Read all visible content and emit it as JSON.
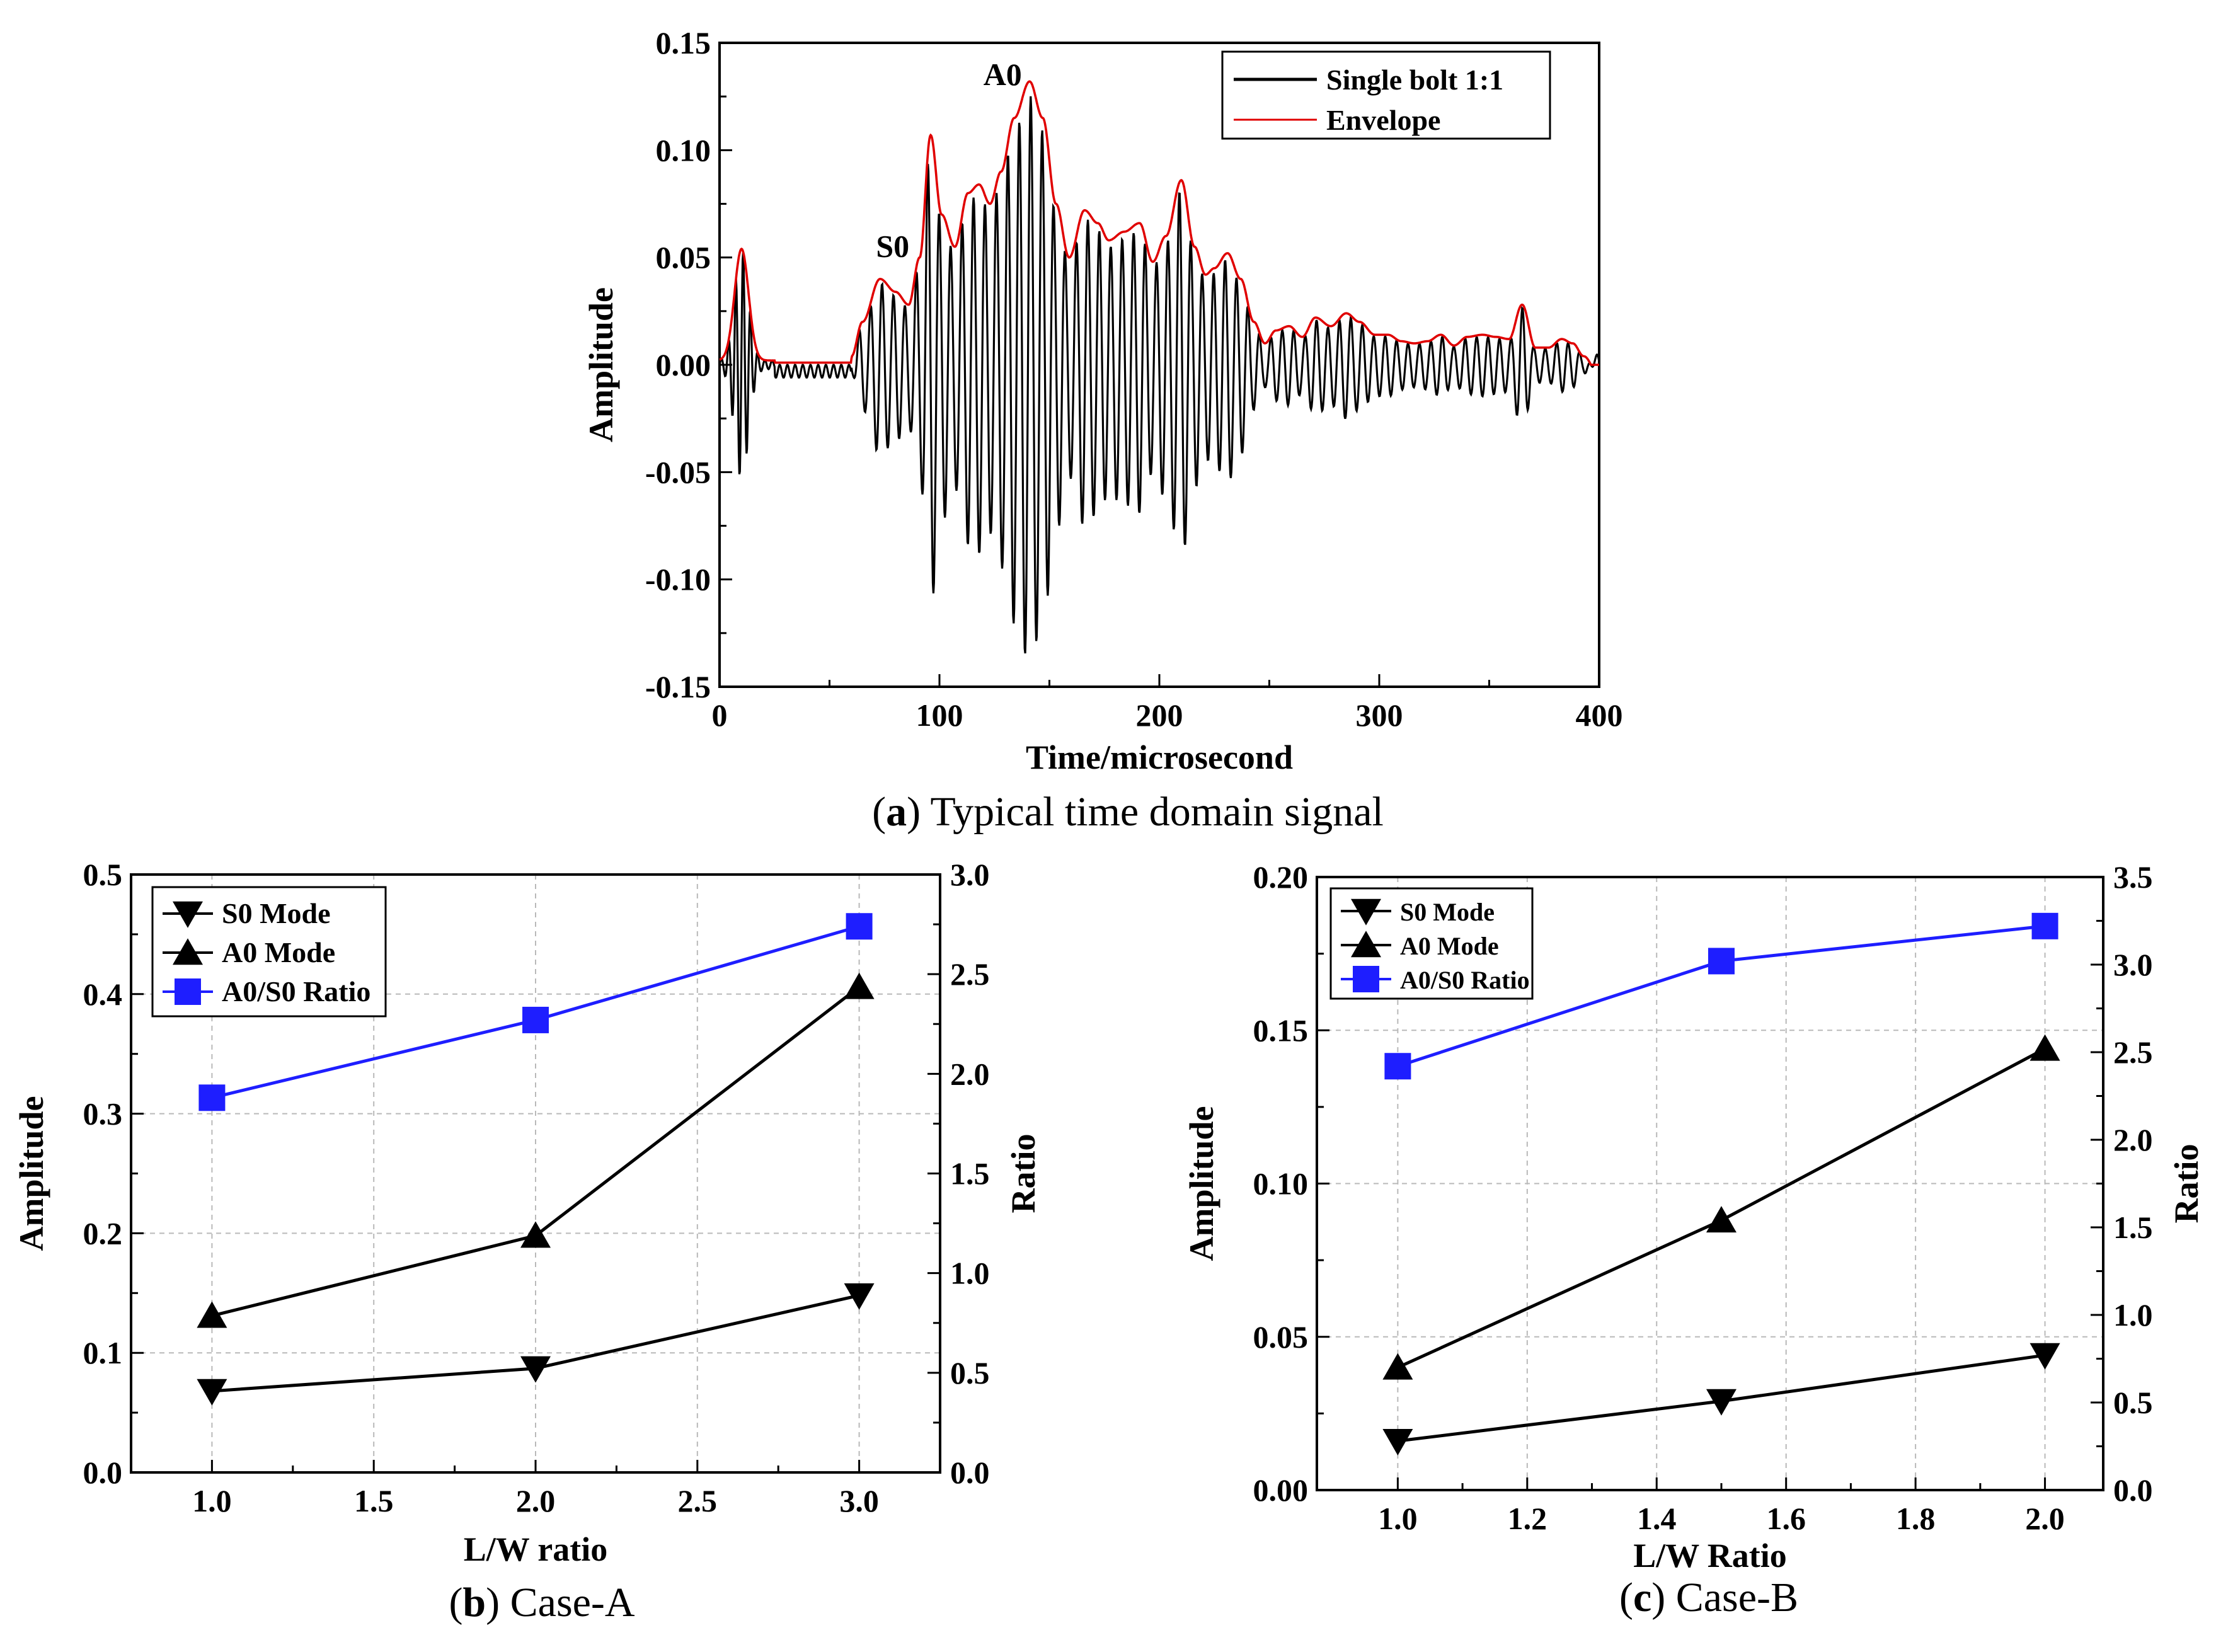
{
  "chart_data": [
    {
      "type": "line",
      "panel": "a",
      "caption_label": "a",
      "caption_text": "Typical time domain signal",
      "xlabel": "Time/microsecond",
      "ylabel": "Amplitude",
      "xlim": [
        0,
        400
      ],
      "ylim": [
        -0.15,
        0.15
      ],
      "xticks": [
        "0",
        "100",
        "200",
        "300",
        "400"
      ],
      "yticks": [
        "-0.15",
        "-0.10",
        "-0.05",
        "0.00",
        "0.05",
        "0.10",
        "0.15"
      ],
      "grid": false,
      "legend_position": "top-right",
      "annotations": [
        {
          "text": "S0",
          "x": 73,
          "y": 0.048
        },
        {
          "text": "A0",
          "x": 123,
          "y": 0.128
        }
      ],
      "series": [
        {
          "name": "Single bolt 1:1",
          "color": "#000000",
          "segments": [
            {
              "t0": 0,
              "t1": 25,
              "t_peak": 10,
              "width": 4.5,
              "amp": 0.052,
              "period": 3.3
            },
            {
              "t0": 25,
              "t1": 60,
              "t_peak": 28,
              "width": 30,
              "amp": 0.003,
              "period": 3.5
            },
            {
              "t0": 60,
              "t1": 400,
              "env_points": [
                [
                  60,
                  0.004
                ],
                [
                  65,
                  0.02
                ],
                [
                  73,
                  0.04
                ],
                [
                  80,
                  0.034
                ],
                [
                  86,
                  0.028
                ],
                [
                  91,
                  0.05
                ],
                [
                  96,
                  0.107
                ],
                [
                  101,
                  0.07
                ],
                [
                  107,
                  0.055
                ],
                [
                  113,
                  0.08
                ],
                [
                  118,
                  0.084
                ],
                [
                  123,
                  0.075
                ],
                [
                  128,
                  0.09
                ],
                [
                  134,
                  0.115
                ],
                [
                  141,
                  0.132
                ],
                [
                  147,
                  0.115
                ],
                [
                  153,
                  0.075
                ],
                [
                  159,
                  0.05
                ],
                [
                  166,
                  0.072
                ],
                [
                  172,
                  0.066
                ],
                [
                  177,
                  0.058
                ],
                [
                  184,
                  0.062
                ],
                [
                  191,
                  0.066
                ],
                [
                  197,
                  0.048
                ],
                [
                  203,
                  0.06
                ],
                [
                  210,
                  0.086
                ],
                [
                  216,
                  0.055
                ],
                [
                  221,
                  0.042
                ],
                [
                  225,
                  0.045
                ],
                [
                  231,
                  0.052
                ],
                [
                  237,
                  0.04
                ],
                [
                  243,
                  0.02
                ],
                [
                  248,
                  0.01
                ],
                [
                  253,
                  0.016
                ],
                [
                  259,
                  0.018
                ],
                [
                  265,
                  0.013
                ],
                [
                  271,
                  0.022
                ],
                [
                  278,
                  0.018
                ],
                [
                  285,
                  0.024
                ],
                [
                  291,
                  0.02
                ],
                [
                  298,
                  0.014
                ],
                [
                  304,
                  0.014
                ],
                [
                  310,
                  0.011
                ],
                [
                  316,
                  0.01
                ],
                [
                  322,
                  0.011
                ],
                [
                  328,
                  0.014
                ],
                [
                  334,
                  0.009
                ],
                [
                  340,
                  0.013
                ],
                [
                  347,
                  0.014
                ],
                [
                  353,
                  0.013
                ],
                [
                  359,
                  0.012
                ],
                [
                  365,
                  0.028
                ],
                [
                  371,
                  0.008
                ],
                [
                  377,
                  0.008
                ],
                [
                  383,
                  0.012
                ],
                [
                  388,
                  0.01
                ],
                [
                  393,
                  0.004
                ],
                [
                  400,
                  -0.005
                ]
              ],
              "period": 5.2
            }
          ]
        },
        {
          "name": "Envelope",
          "color": "#e00000"
        }
      ]
    },
    {
      "type": "line",
      "panel": "b",
      "caption_label": "b",
      "caption_text": "Case-A",
      "xlabel": "L/W ratio",
      "ylabel": "Amplitude",
      "y2label": "Ratio",
      "y2label_color": "#1e1eff",
      "xlim": [
        0.75,
        3.25
      ],
      "ylim": [
        0,
        0.5
      ],
      "y2lim": [
        0,
        3.0
      ],
      "xticks": [
        "1.0",
        "1.5",
        "2.0",
        "2.5",
        "3.0"
      ],
      "yticks": [
        "0.0",
        "0.1",
        "0.2",
        "0.3",
        "0.4",
        "0.5"
      ],
      "y2ticks": [
        "0.0",
        "0.5",
        "1.0",
        "1.5",
        "2.0",
        "2.5",
        "3.0"
      ],
      "grid": true,
      "legend_position": "top-left",
      "x": [
        1.0,
        2.0,
        3.0
      ],
      "series": [
        {
          "name": "S0 Mode",
          "marker": "triangle-down",
          "color": "#000000",
          "axis": "left",
          "values": [
            0.068,
            0.087,
            0.148
          ]
        },
        {
          "name": "A0 Mode",
          "marker": "triangle-up",
          "color": "#000000",
          "axis": "left",
          "values": [
            0.131,
            0.198,
            0.406
          ]
        },
        {
          "name": "A0/S0 Ratio",
          "marker": "square",
          "color": "#1e1eff",
          "axis": "right",
          "values": [
            1.88,
            2.27,
            2.74
          ]
        }
      ]
    },
    {
      "type": "line",
      "panel": "c",
      "caption_label": "c",
      "caption_text": "Case-B",
      "xlabel": "L/W Ratio",
      "ylabel": "Amplitude",
      "y2label": "Ratio",
      "y2label_color": "#1e1eff",
      "xlim": [
        0.875,
        2.09
      ],
      "ylim": [
        0,
        0.2
      ],
      "y2lim": [
        0,
        3.5
      ],
      "xticks": [
        "1.0",
        "1.2",
        "1.4",
        "1.6",
        "1.8",
        "2.0"
      ],
      "yticks": [
        "0.00",
        "0.05",
        "0.10",
        "0.15",
        "0.20"
      ],
      "y2ticks": [
        "0.0",
        "0.5",
        "1.0",
        "1.5",
        "2.0",
        "2.5",
        "3.0",
        "3.5"
      ],
      "grid": true,
      "legend_position": "top-left",
      "x": [
        1.0,
        1.5,
        2.0
      ],
      "series": [
        {
          "name": "S0 Mode",
          "marker": "triangle-down",
          "color": "#000000",
          "axis": "left",
          "values": [
            0.016,
            0.029,
            0.044
          ]
        },
        {
          "name": "A0 Mode",
          "marker": "triangle-up",
          "color": "#000000",
          "axis": "left",
          "values": [
            0.04,
            0.088,
            0.144
          ]
        },
        {
          "name": "A0/S0 Ratio",
          "marker": "square",
          "color": "#1e1eff",
          "axis": "right",
          "values": [
            2.42,
            3.02,
            3.22
          ]
        }
      ]
    }
  ]
}
